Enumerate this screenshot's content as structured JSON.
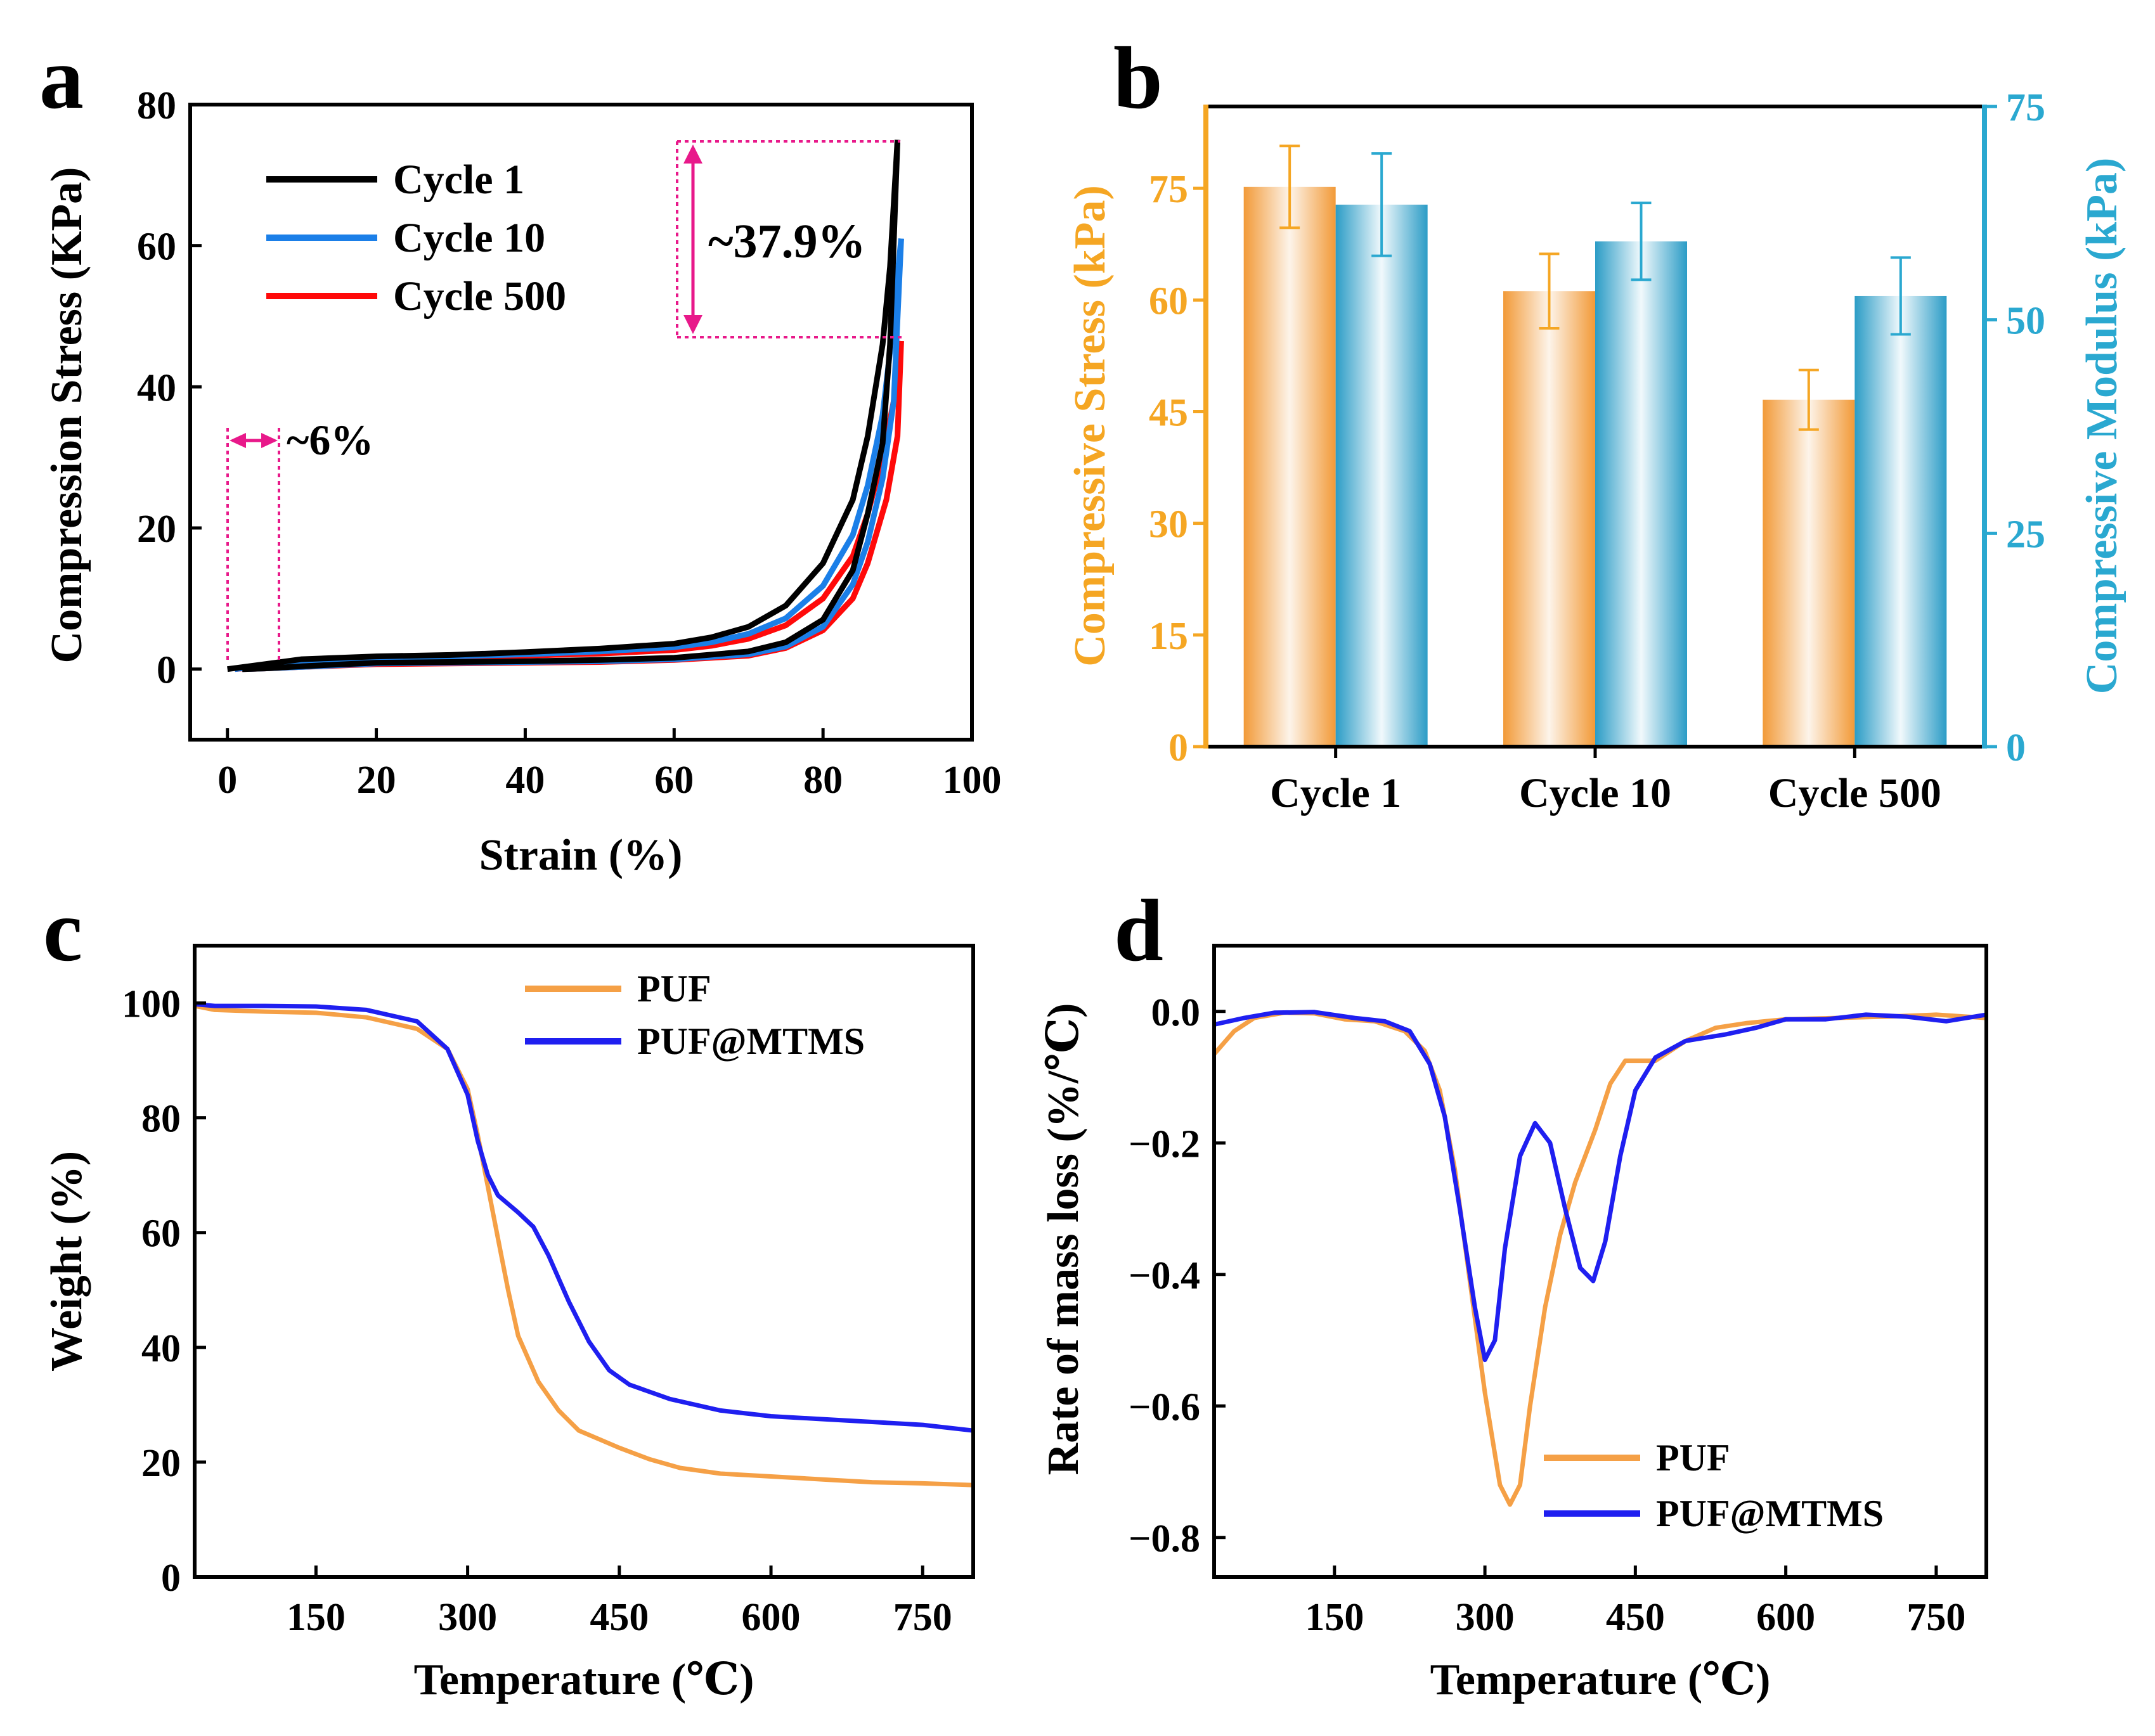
{
  "figure_title": "",
  "chart_data": [
    {
      "panel": "a",
      "type": "line",
      "xlabel": "Strain (%)",
      "ylabel": "Compression Stress (KPa)",
      "xlim": [
        -5,
        100
      ],
      "ylim": [
        -10,
        80
      ],
      "xticks": [
        0,
        20,
        40,
        60,
        80,
        100
      ],
      "yticks": [
        0,
        20,
        40,
        60,
        80
      ],
      "legend_position": "top-left",
      "annotations": {
        "peak_drop": "~37.9%",
        "residual_strain": "~6%"
      },
      "series": [
        {
          "name": "Cycle 1",
          "color": "#000000",
          "peak": 75,
          "loading": [
            [
              0,
              0
            ],
            [
              5,
              0.7
            ],
            [
              10,
              1.4
            ],
            [
              20,
              1.8
            ],
            [
              30,
              2.0
            ],
            [
              40,
              2.4
            ],
            [
              50,
              2.9
            ],
            [
              60,
              3.6
            ],
            [
              65,
              4.5
            ],
            [
              70,
              6
            ],
            [
              75,
              9
            ],
            [
              80,
              15
            ],
            [
              84,
              24
            ],
            [
              86,
              33
            ],
            [
              88,
              46
            ],
            [
              89,
              57
            ],
            [
              90,
              75
            ]
          ],
          "unloading": [
            [
              90,
              75
            ],
            [
              89,
              46
            ],
            [
              88,
              32
            ],
            [
              86,
              22
            ],
            [
              84,
              14
            ],
            [
              80,
              7
            ],
            [
              75,
              3.8
            ],
            [
              70,
              2.5
            ],
            [
              60,
              1.6
            ],
            [
              50,
              1.3
            ],
            [
              40,
              1.1
            ],
            [
              30,
              1.0
            ],
            [
              20,
              0.9
            ],
            [
              10,
              0.4
            ],
            [
              5,
              0.1
            ],
            [
              2,
              0
            ]
          ]
        },
        {
          "name": "Cycle 10",
          "color": "#1b7fe8",
          "peak": 61,
          "loading": [
            [
              1,
              0
            ],
            [
              5,
              0.5
            ],
            [
              10,
              1.2
            ],
            [
              20,
              1.6
            ],
            [
              30,
              1.8
            ],
            [
              40,
              2.1
            ],
            [
              50,
              2.5
            ],
            [
              60,
              3.1
            ],
            [
              65,
              3.8
            ],
            [
              70,
              5
            ],
            [
              75,
              7.2
            ],
            [
              80,
              11.8
            ],
            [
              84,
              19
            ],
            [
              86,
              26
            ],
            [
              88,
              36
            ],
            [
              89,
              45
            ],
            [
              90.5,
              61
            ]
          ],
          "unloading": [
            [
              90.5,
              61
            ],
            [
              89.5,
              38
            ],
            [
              88,
              27
            ],
            [
              86,
              18
            ],
            [
              84,
              12
            ],
            [
              80,
              6
            ],
            [
              75,
              3.2
            ],
            [
              70,
              2.1
            ],
            [
              60,
              1.4
            ],
            [
              50,
              1.1
            ],
            [
              40,
              1.0
            ],
            [
              30,
              0.9
            ],
            [
              20,
              0.8
            ],
            [
              10,
              0.3
            ],
            [
              5,
              0.1
            ],
            [
              2,
              0
            ]
          ]
        },
        {
          "name": "Cycle 500",
          "color": "#ff0a0a",
          "peak": 46.5,
          "loading": [
            [
              1,
              0
            ],
            [
              5,
              0.4
            ],
            [
              10,
              1.0
            ],
            [
              20,
              1.4
            ],
            [
              30,
              1.6
            ],
            [
              40,
              1.9
            ],
            [
              50,
              2.2
            ],
            [
              60,
              2.7
            ],
            [
              65,
              3.3
            ],
            [
              70,
              4.3
            ],
            [
              75,
              6.2
            ],
            [
              80,
              10
            ],
            [
              84,
              16
            ],
            [
              86,
              22
            ],
            [
              88,
              30
            ],
            [
              89.5,
              38
            ],
            [
              90.5,
              46.5
            ]
          ],
          "unloading": [
            [
              90.5,
              46.5
            ],
            [
              90,
              33
            ],
            [
              88.5,
              24
            ],
            [
              86,
              15
            ],
            [
              84,
              10
            ],
            [
              80,
              5.5
            ],
            [
              75,
              3
            ],
            [
              70,
              1.9
            ],
            [
              60,
              1.3
            ],
            [
              50,
              1.0
            ],
            [
              40,
              0.9
            ],
            [
              30,
              0.8
            ],
            [
              20,
              0.7
            ],
            [
              10,
              0.3
            ],
            [
              5,
              0.1
            ],
            [
              2,
              0
            ]
          ]
        }
      ]
    },
    {
      "panel": "b",
      "type": "bar",
      "categories": [
        "Cycle 1",
        "Cycle 10",
        "Cycle 500"
      ],
      "ylabel": "Compressive Stress (kPa)",
      "y2label": "Compressive Modulus (kPa)",
      "ylim": [
        0,
        86
      ],
      "y2lim": [
        0,
        75
      ],
      "yticks": [
        0,
        15,
        30,
        45,
        60,
        75
      ],
      "y2ticks": [
        0,
        25,
        50,
        75
      ],
      "left_axis_color": "#f5a623",
      "right_axis_color": "#2aa8d0",
      "series": [
        {
          "name": "Compressive Stress",
          "axis": "left",
          "color": "#f5a623",
          "values": [
            75.2,
            61.2,
            46.6
          ],
          "errors": [
            5.5,
            5.0,
            4.0
          ]
        },
        {
          "name": "Compressive Modulus",
          "axis": "right",
          "color": "#2aa8d0",
          "values": [
            63.5,
            59.2,
            52.8
          ],
          "errors": [
            6.0,
            4.5,
            4.5
          ]
        }
      ]
    },
    {
      "panel": "c",
      "type": "line",
      "xlabel": "Temperature (℃)",
      "ylabel": "Weight (%)",
      "xlim": [
        30,
        800
      ],
      "ylim": [
        0,
        110
      ],
      "xticks": [
        150,
        300,
        450,
        600,
        750
      ],
      "yticks": [
        0,
        20,
        40,
        60,
        80,
        100
      ],
      "legend_position": "top-center",
      "series": [
        {
          "name": "PUF",
          "color": "#f5a046",
          "points": [
            [
              30,
              99.5
            ],
            [
              50,
              98.8
            ],
            [
              100,
              98.5
            ],
            [
              150,
              98.3
            ],
            [
              200,
              97.5
            ],
            [
              250,
              95.5
            ],
            [
              280,
              92
            ],
            [
              300,
              85
            ],
            [
              310,
              77
            ],
            [
              320,
              68
            ],
            [
              330,
              59
            ],
            [
              340,
              50
            ],
            [
              350,
              42
            ],
            [
              370,
              34
            ],
            [
              390,
              29
            ],
            [
              410,
              25.5
            ],
            [
              430,
              24
            ],
            [
              450,
              22.5
            ],
            [
              480,
              20.5
            ],
            [
              510,
              19
            ],
            [
              550,
              18
            ],
            [
              600,
              17.5
            ],
            [
              650,
              17
            ],
            [
              700,
              16.5
            ],
            [
              750,
              16.3
            ],
            [
              800,
              16
            ]
          ]
        },
        {
          "name": "PUF@MTMS",
          "color": "#1f1ff0",
          "points": [
            [
              30,
              99.8
            ],
            [
              50,
              99.5
            ],
            [
              100,
              99.5
            ],
            [
              150,
              99.4
            ],
            [
              200,
              98.8
            ],
            [
              250,
              96.8
            ],
            [
              280,
              92
            ],
            [
              300,
              84
            ],
            [
              310,
              76
            ],
            [
              320,
              70
            ],
            [
              330,
              66.5
            ],
            [
              340,
              65
            ],
            [
              350,
              63.5
            ],
            [
              365,
              61
            ],
            [
              380,
              56
            ],
            [
              400,
              48
            ],
            [
              420,
              41
            ],
            [
              440,
              36
            ],
            [
              460,
              33.5
            ],
            [
              500,
              31
            ],
            [
              550,
              29
            ],
            [
              600,
              28
            ],
            [
              650,
              27.5
            ],
            [
              700,
              27
            ],
            [
              750,
              26.5
            ],
            [
              800,
              25.5
            ]
          ]
        }
      ]
    },
    {
      "panel": "d",
      "type": "line",
      "xlabel": "Temperature (℃)",
      "ylabel": "Rate of mass loss (%/℃)",
      "xlim": [
        30,
        800
      ],
      "ylim": [
        -0.86,
        0.1
      ],
      "xticks": [
        150,
        300,
        450,
        600,
        750
      ],
      "yticks": [
        -0.8,
        -0.6,
        -0.4,
        -0.2,
        0.0
      ],
      "legend_position": "bottom-center",
      "series": [
        {
          "name": "PUF",
          "color": "#f5a046",
          "points": [
            [
              30,
              -0.065
            ],
            [
              50,
              -0.03
            ],
            [
              70,
              -0.01
            ],
            [
              100,
              -0.002
            ],
            [
              130,
              -0.003
            ],
            [
              160,
              -0.012
            ],
            [
              190,
              -0.015
            ],
            [
              220,
              -0.03
            ],
            [
              240,
              -0.06
            ],
            [
              255,
              -0.12
            ],
            [
              270,
              -0.24
            ],
            [
              285,
              -0.41
            ],
            [
              300,
              -0.58
            ],
            [
              315,
              -0.72
            ],
            [
              325,
              -0.75
            ],
            [
              335,
              -0.72
            ],
            [
              345,
              -0.6
            ],
            [
              360,
              -0.45
            ],
            [
              375,
              -0.34
            ],
            [
              390,
              -0.26
            ],
            [
              410,
              -0.18
            ],
            [
              425,
              -0.11
            ],
            [
              440,
              -0.075
            ],
            [
              455,
              -0.075
            ],
            [
              470,
              -0.075
            ],
            [
              500,
              -0.045
            ],
            [
              530,
              -0.025
            ],
            [
              560,
              -0.018
            ],
            [
              600,
              -0.012
            ],
            [
              650,
              -0.01
            ],
            [
              700,
              -0.008
            ],
            [
              750,
              -0.005
            ],
            [
              800,
              -0.01
            ]
          ]
        },
        {
          "name": "PUF@MTMS",
          "color": "#1f1ff0",
          "points": [
            [
              30,
              -0.02
            ],
            [
              60,
              -0.01
            ],
            [
              90,
              -0.002
            ],
            [
              130,
              -0.001
            ],
            [
              170,
              -0.01
            ],
            [
              200,
              -0.015
            ],
            [
              225,
              -0.03
            ],
            [
              245,
              -0.08
            ],
            [
              260,
              -0.16
            ],
            [
              275,
              -0.3
            ],
            [
              290,
              -0.45
            ],
            [
              300,
              -0.53
            ],
            [
              310,
              -0.5
            ],
            [
              320,
              -0.36
            ],
            [
              335,
              -0.22
            ],
            [
              350,
              -0.17
            ],
            [
              365,
              -0.2
            ],
            [
              380,
              -0.3
            ],
            [
              395,
              -0.39
            ],
            [
              408,
              -0.41
            ],
            [
              420,
              -0.35
            ],
            [
              435,
              -0.22
            ],
            [
              450,
              -0.12
            ],
            [
              470,
              -0.07
            ],
            [
              500,
              -0.045
            ],
            [
              540,
              -0.035
            ],
            [
              570,
              -0.025
            ],
            [
              600,
              -0.012
            ],
            [
              640,
              -0.012
            ],
            [
              680,
              -0.005
            ],
            [
              720,
              -0.008
            ],
            [
              760,
              -0.015
            ],
            [
              800,
              -0.005
            ]
          ]
        }
      ]
    }
  ]
}
